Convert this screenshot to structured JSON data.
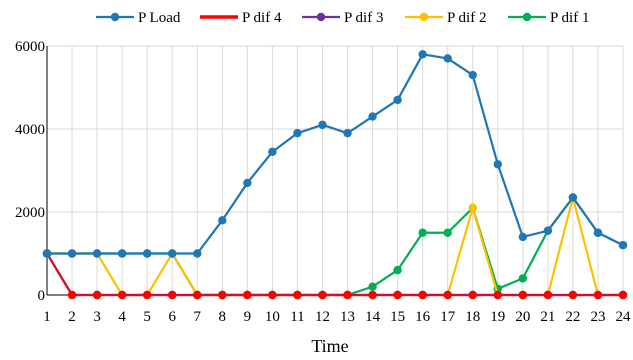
{
  "chart_data": {
    "type": "line",
    "title": "",
    "xlabel": "Time",
    "ylabel": "",
    "x": [
      1,
      2,
      3,
      4,
      5,
      6,
      7,
      8,
      9,
      10,
      11,
      12,
      13,
      14,
      15,
      16,
      17,
      18,
      19,
      20,
      21,
      22,
      23,
      24
    ],
    "ylim": [
      0,
      6000
    ],
    "yticks": [
      0,
      2000,
      4000,
      6000
    ],
    "ytick_labels": [
      "0",
      "2000",
      "4000",
      "6000"
    ],
    "grid": true,
    "legend_position": "top",
    "series": [
      {
        "name": "P Load",
        "color": "#1f77b4",
        "values": [
          1000,
          1000,
          1000,
          1000,
          1000,
          1000,
          1000,
          1800,
          2700,
          3450,
          3900,
          4100,
          3900,
          4300,
          4700,
          5800,
          5700,
          5300,
          3150,
          1400,
          1550,
          2350,
          1500,
          1200
        ]
      },
      {
        "name": "P dif 4",
        "color": "#ff0000",
        "values": [
          1000,
          0,
          0,
          0,
          0,
          0,
          0,
          0,
          0,
          0,
          0,
          0,
          0,
          0,
          0,
          0,
          0,
          0,
          0,
          0,
          0,
          0,
          0,
          0
        ]
      },
      {
        "name": "P dif 3",
        "color": "#7030a0",
        "values": [
          1000,
          0,
          0,
          0,
          0,
          0,
          0,
          0,
          0,
          0,
          0,
          0,
          0,
          0,
          0,
          0,
          0,
          0,
          0,
          0,
          0,
          0,
          0,
          0
        ]
      },
      {
        "name": "P dif 2",
        "color": "#ffc000",
        "values": [
          1000,
          1000,
          1000,
          0,
          0,
          1000,
          0,
          0,
          0,
          0,
          0,
          0,
          0,
          0,
          0,
          0,
          0,
          2100,
          0,
          0,
          0,
          2350,
          0,
          0
        ]
      },
      {
        "name": "P dif 1",
        "color": "#00b050",
        "values": [
          1000,
          1000,
          1000,
          1000,
          1000,
          1000,
          0,
          0,
          0,
          0,
          0,
          0,
          0,
          200,
          600,
          1500,
          1500,
          2100,
          150,
          400,
          1550,
          2350,
          1500,
          1200
        ]
      }
    ]
  }
}
